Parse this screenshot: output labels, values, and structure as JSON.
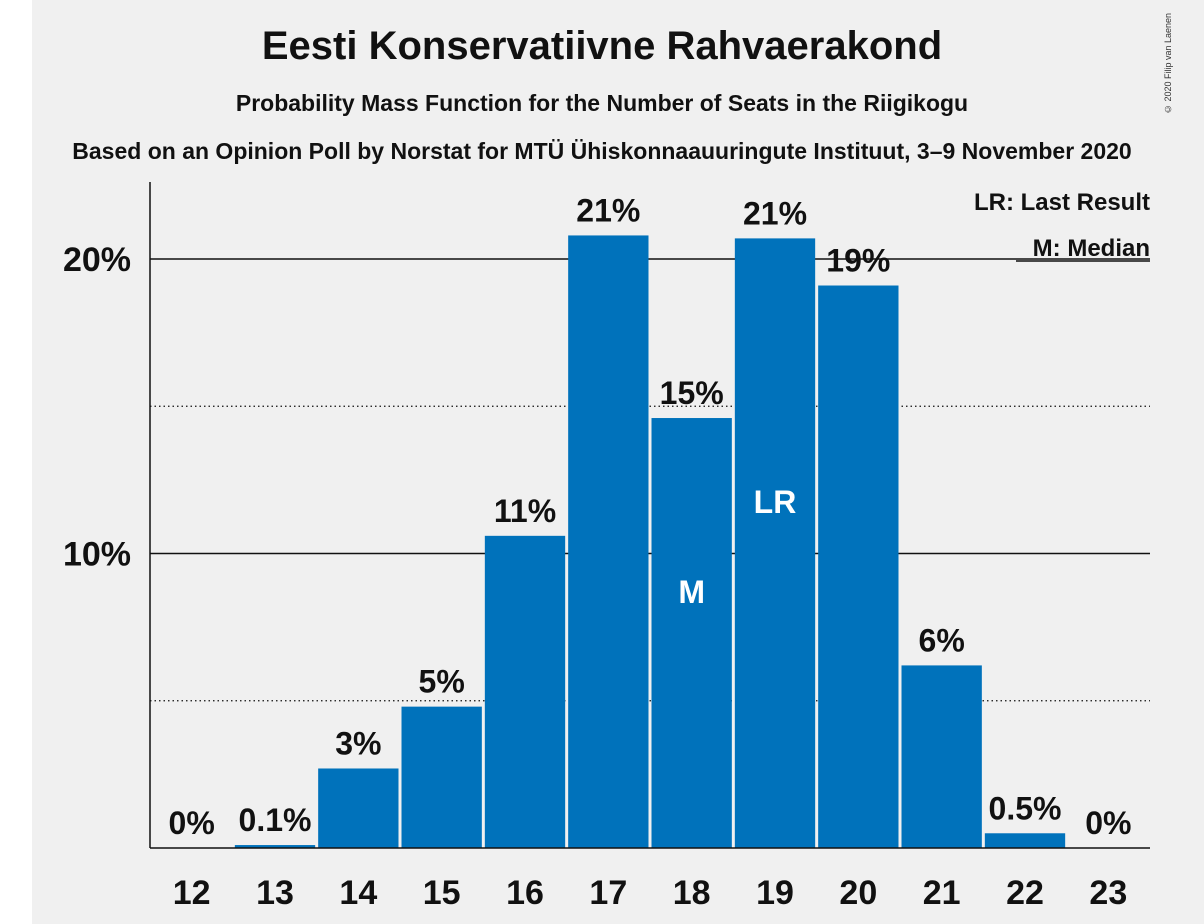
{
  "header": {
    "title": "Eesti Konservatiivne Rahvaerakond",
    "subtitle": "Probability Mass Function for the Number of Seats in the Riigikogu",
    "source": "Based on an Opinion Poll by Norstat for MTÜ Ühiskonnaauuringute Instituut, 3–9 November 2020",
    "copyright": "© 2020 Filip van Laenen"
  },
  "legend": {
    "lr": "LR: Last Result",
    "median": "M: Median"
  },
  "colors": {
    "bar": "#0072bb",
    "panel": "#f0f0f0",
    "text": "#111111"
  },
  "chart_data": {
    "type": "bar",
    "categories": [
      "12",
      "13",
      "14",
      "15",
      "16",
      "17",
      "18",
      "19",
      "20",
      "21",
      "22",
      "23"
    ],
    "values": [
      0,
      0.1,
      2.7,
      4.8,
      10.6,
      20.8,
      14.6,
      20.7,
      19.1,
      6.2,
      0.5,
      0
    ],
    "data_labels": [
      "0%",
      "0.1%",
      "3%",
      "5%",
      "11%",
      "21%",
      "15%",
      "21%",
      "19%",
      "6%",
      "0.5%",
      "0%"
    ],
    "bar_markers": {
      "18": "M",
      "19": "LR"
    },
    "y_ticks": [
      {
        "value": 10,
        "label": "10%"
      },
      {
        "value": 20,
        "label": "20%"
      }
    ],
    "minor_gridlines": [
      5,
      15
    ],
    "ylim": [
      0,
      22.5
    ],
    "legend_placement": "top-right"
  }
}
